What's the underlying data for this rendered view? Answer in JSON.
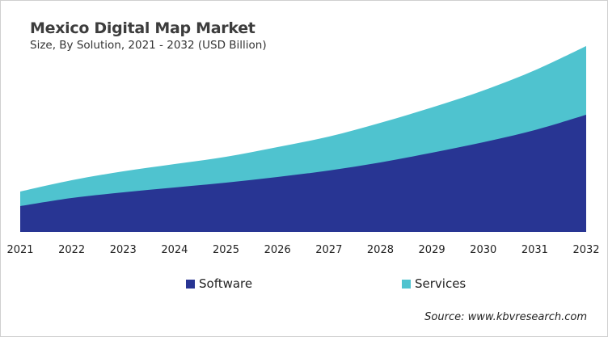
{
  "chart_data": {
    "type": "area",
    "stacked": true,
    "title": "Mexico Digital Map Market",
    "subtitle": "Size, By Solution, 2021 - 2032 (USD Billion)",
    "x": [
      "2021",
      "2022",
      "2023",
      "2024",
      "2025",
      "2026",
      "2027",
      "2028",
      "2029",
      "2030",
      "2031",
      "2032"
    ],
    "series": [
      {
        "name": "Software",
        "color": "#283593",
        "values": [
          32,
          42,
          49,
          55,
          61,
          68,
          76,
          86,
          98,
          111,
          126,
          145
        ]
      },
      {
        "name": "Services",
        "color": "#4fc3cf",
        "values": [
          18,
          22,
          26,
          29,
          32,
          37,
          42,
          49,
          56,
          64,
          74,
          85
        ]
      }
    ],
    "ylim": [
      0,
      230
    ],
    "y_axis_visible": false,
    "grid": false,
    "legend_position": "bottom",
    "source": "Source: www.kbvresearch.com"
  }
}
